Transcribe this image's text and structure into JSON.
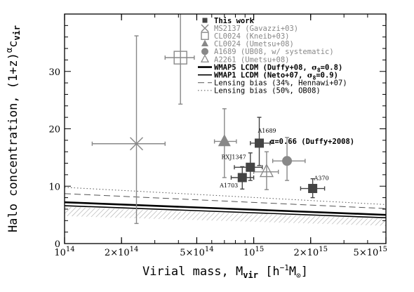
{
  "chart_data": {
    "type": "scatter",
    "xlabel_main": "Virial mass, M",
    "xlabel_sub": "vir",
    "xlabel_unit_pre": "[h",
    "xlabel_unit_exp": "−1",
    "xlabel_unit_m": "M",
    "xlabel_unit_sun": "⊙",
    "xlabel_unit_close": "]",
    "ylabel_main": "Halo concentration, (1+z)",
    "ylabel_alpha": "α",
    "ylabel_c": "c",
    "ylabel_sub": "vir",
    "xscale": "log",
    "xlim": [
      100000000000000.0,
      5000000000000000.0
    ],
    "ylim": [
      0,
      40
    ],
    "xticks": [
      {
        "value": 100000000000000.0,
        "mant": "",
        "base": "10",
        "exp": "14"
      },
      {
        "value": 200000000000000.0,
        "mant": "2×",
        "base": "10",
        "exp": "14"
      },
      {
        "value": 500000000000000.0,
        "mant": "5×",
        "base": "10",
        "exp": "14"
      },
      {
        "value": 1000000000000000.0,
        "mant": "",
        "base": "10",
        "exp": "15"
      },
      {
        "value": 2000000000000000.0,
        "mant": "2×",
        "base": "10",
        "exp": "15"
      },
      {
        "value": 5000000000000000.0,
        "mant": "5×",
        "base": "10",
        "exp": "15"
      }
    ],
    "yticks": [
      0,
      10,
      20,
      30
    ],
    "annotation": "α=0.66 (Duffy+2008)",
    "series": [
      {
        "name": "This work",
        "marker": "square",
        "color": "#444444",
        "points": [
          {
            "x": 1070000000000000.0,
            "y": 17.5,
            "xlo": 960000000000000.0,
            "xhi": 1220000000000000.0,
            "ylo": 13.6,
            "yhi": 22.0,
            "label": "A1689"
          },
          {
            "x": 960000000000000.0,
            "y": 13.3,
            "xlo": 790000000000000.0,
            "xhi": 1110000000000000.0,
            "ylo": 11.0,
            "yhi": 15.8,
            "label": "RXJ1347"
          },
          {
            "x": 870000000000000.0,
            "y": 11.5,
            "xlo": 760000000000000.0,
            "xhi": 1000000000000000.0,
            "ylo": 9.5,
            "yhi": 13.4,
            "label": "A1703"
          },
          {
            "x": 2050000000000000.0,
            "y": 9.6,
            "xlo": 1770000000000000.0,
            "xhi": 2370000000000000.0,
            "ylo": 8.0,
            "yhi": 11.3,
            "label": "A370"
          }
        ]
      },
      {
        "name": "MS2137 (Gavazzi+03)",
        "marker": "x",
        "color": "#888888",
        "points": [
          {
            "x": 240000000000000.0,
            "y": 17.4,
            "xlo": 140000000000000.0,
            "xhi": 340000000000000.0,
            "ylo": 3.5,
            "yhi": 36.2
          }
        ]
      },
      {
        "name": "CL0024 (Kneib+03)",
        "marker": "open-square",
        "color": "#888888",
        "points": [
          {
            "x": 410000000000000.0,
            "y": 32.4,
            "xlo": 340000000000000.0,
            "xhi": 485000000000000.0,
            "ylo": 24.3,
            "yhi": 40.5
          }
        ]
      },
      {
        "name": "CL0024 (Umetsu+08)",
        "marker": "triangle",
        "color": "#888888",
        "points": [
          {
            "x": 700000000000000.0,
            "y": 17.8,
            "xlo": 620000000000000.0,
            "xhi": 810000000000000.0,
            "ylo": 11.5,
            "yhi": 23.5
          }
        ]
      },
      {
        "name": "A1689 (UB08, w/ systematic)",
        "marker": "circle",
        "color": "#888888",
        "points": [
          {
            "x": 1500000000000000.0,
            "y": 14.4,
            "xlo": 1260000000000000.0,
            "xhi": 1870000000000000.0,
            "ylo": 11.0,
            "yhi": 18.5
          }
        ]
      },
      {
        "name": "A2261 (Umetsu+08)",
        "marker": "open-triangle",
        "color": "#888888",
        "points": [
          {
            "x": 1170000000000000.0,
            "y": 12.5,
            "xlo": 1000000000000000.0,
            "xhi": 1350000000000000.0,
            "ylo": 9.4,
            "yhi": 16.0
          }
        ]
      }
    ],
    "lines": [
      {
        "name": "WMAP5 LCDM (Duffy+08, σ₈=0.8)",
        "style": "solid-thick",
        "y_at_xmin": 7.2,
        "y_at_xmax": 5.0
      },
      {
        "name": "WMAP1 LCDM (Neto+07, σ₈=0.9)",
        "style": "solid",
        "y_at_xmin": 6.6,
        "y_at_xmax": 4.5
      },
      {
        "name": "Lensing bias (34%, Hennawi+07)",
        "style": "dashed",
        "y_at_xmin": 8.7,
        "y_at_xmax": 6.1
      },
      {
        "name": "Lensing bias (50%, OB08)",
        "style": "dotted",
        "y_at_xmin": 9.8,
        "y_at_xmax": 6.8
      }
    ],
    "band": {
      "upper_at_xmin": 6.4,
      "upper_at_xmax": 4.3,
      "lower_at_xmin": 4.8,
      "lower_at_xmax": 3.1
    }
  },
  "legend": [
    {
      "label": "This work",
      "marker": "square"
    },
    {
      "label": "MS2137 (Gavazzi+03)",
      "marker": "x"
    },
    {
      "label": "CL0024 (Kneib+03)",
      "marker": "open-square"
    },
    {
      "label": "CL0024 (Umetsu+08)",
      "marker": "triangle"
    },
    {
      "label": "A1689 (UB08, w/ systematic)",
      "marker": "circle"
    },
    {
      "label": "A2261 (Umetsu+08)",
      "marker": "open-triangle"
    },
    {
      "label_pre": "WMAP5 LCDM (Duffy+08, ",
      "sigma": "σ",
      "sub": "8",
      "label_post": "=0.8)",
      "marker": "solid-thick"
    },
    {
      "label_pre": "WMAP1 LCDM (Neto+07, ",
      "sigma": "σ",
      "sub": "8",
      "label_post": "=0.9)",
      "marker": "solid"
    },
    {
      "label": "Lensing bias (34%, Hennawi+07)",
      "marker": "dashed"
    },
    {
      "label": "Lensing bias (50%, OB08)",
      "marker": "dotted"
    }
  ]
}
